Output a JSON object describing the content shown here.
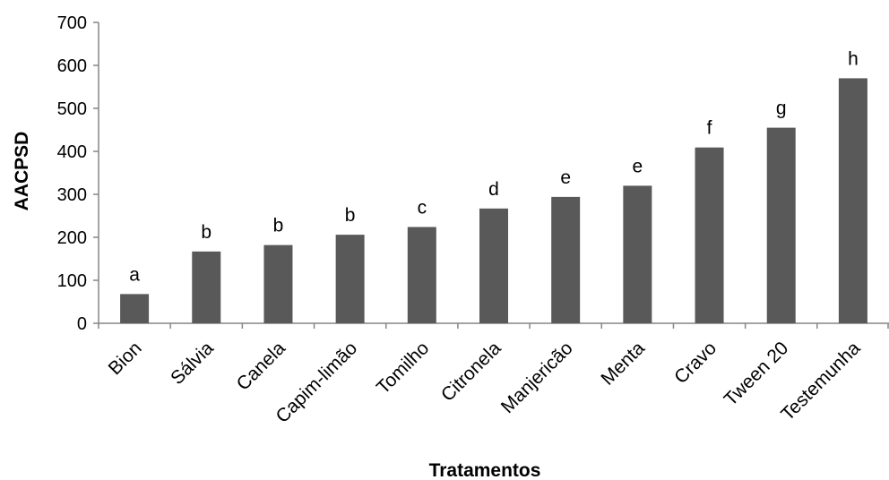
{
  "chart_data": {
    "type": "bar",
    "xlabel": "Tratamentos",
    "ylabel": "AACPSD",
    "ylim": [
      0,
      700
    ],
    "yticks": [
      0,
      100,
      200,
      300,
      400,
      500,
      600,
      700
    ],
    "grid": false,
    "bar_color": "#595959",
    "categories": [
      "Bion",
      "Sálvia",
      "Canela",
      "Capim-limão",
      "Tomilho",
      "Citronela",
      "Manjericão",
      "Menta",
      "Cravo",
      "Tween 20",
      "Testemunha"
    ],
    "values": [
      68,
      167,
      182,
      206,
      224,
      267,
      294,
      320,
      409,
      455,
      570
    ],
    "bar_labels": [
      "a",
      "b",
      "b",
      "b",
      "c",
      "d",
      "e",
      "e",
      "f",
      "g",
      "h"
    ]
  }
}
